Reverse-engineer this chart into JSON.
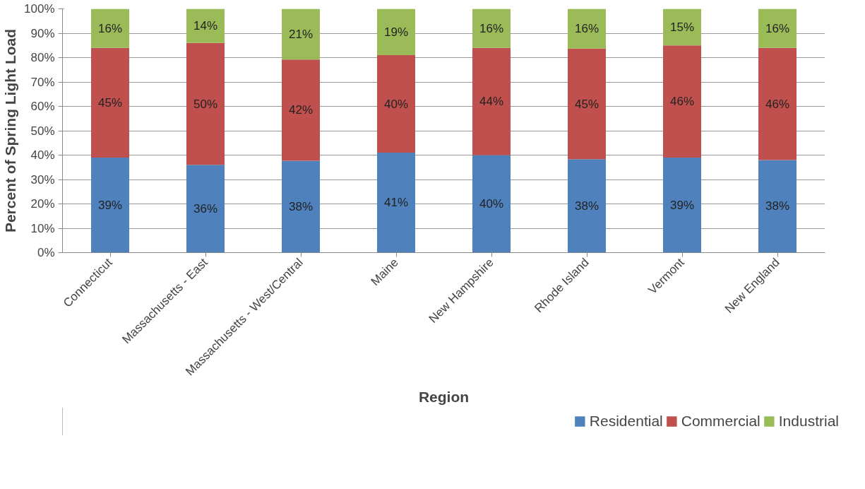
{
  "chart_data": {
    "type": "bar",
    "stacked": true,
    "xlabel": "Region",
    "ylabel": "Percent of Spring Light Load",
    "categories": [
      "Connecticut",
      "Massachusetts - East",
      "Massachusetts - West/Central",
      "Maine",
      "New Hampshire",
      "Rhode Island",
      "Vermont",
      "New England"
    ],
    "series": [
      {
        "name": "Residential",
        "color": "#4f81bd",
        "values": [
          39,
          36,
          37.7,
          41,
          40,
          38.3,
          39,
          38
        ],
        "value_labels": [
          "39%",
          "36%",
          "38%",
          "41%",
          "40%",
          "38%",
          "39%",
          "38%"
        ]
      },
      {
        "name": "Commercial",
        "color": "#c0504d",
        "values": [
          45,
          50,
          41.5,
          40,
          44,
          45.4,
          46,
          46
        ],
        "value_labels": [
          "45%",
          "50%",
          "42%",
          "40%",
          "44%",
          "45%",
          "46%",
          "46%"
        ]
      },
      {
        "name": "Industrial",
        "color": "#9bbb59",
        "values": [
          16,
          14,
          20.8,
          19,
          16,
          16.3,
          15,
          16
        ],
        "value_labels": [
          "16%",
          "14%",
          "21%",
          "19%",
          "16%",
          "16%",
          "15%",
          "16%"
        ]
      }
    ],
    "ylim": [
      0,
      100
    ],
    "yticks": [
      {
        "value": 0,
        "label": "0%"
      },
      {
        "value": 10,
        "label": "10%"
      },
      {
        "value": 20,
        "label": "20%"
      },
      {
        "value": 30,
        "label": "30%"
      },
      {
        "value": 40,
        "label": "40%"
      },
      {
        "value": 50,
        "label": "50%"
      },
      {
        "value": 60,
        "label": "60%"
      },
      {
        "value": 70,
        "label": "70%"
      },
      {
        "value": 80,
        "label": "80%"
      },
      {
        "value": 90,
        "label": "90%"
      },
      {
        "value": 100,
        "label": "100%"
      }
    ],
    "grid": "y",
    "legend": "bottom right"
  }
}
